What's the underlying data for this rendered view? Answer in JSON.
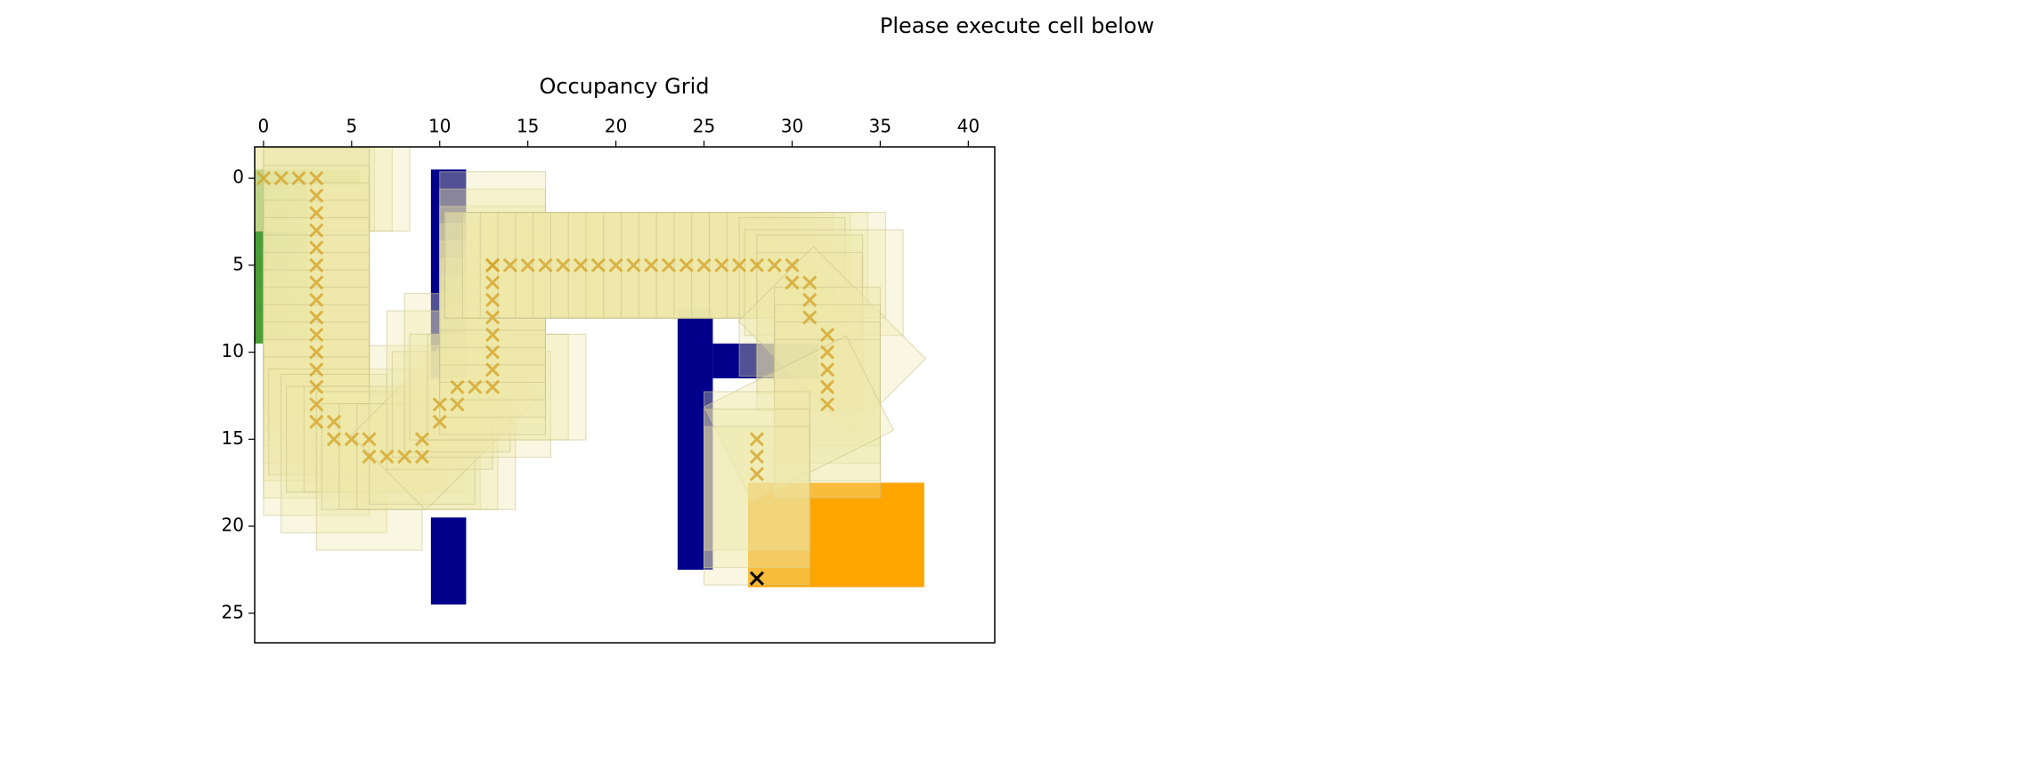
{
  "chart_data": {
    "type": "occupancy-grid",
    "title": "Please execute cell below",
    "subtitle": "Occupancy Grid",
    "xlim": [
      -0.5,
      41.5
    ],
    "ylim": [
      26.7,
      -1.8
    ],
    "xticks": [
      0,
      5,
      10,
      15,
      20,
      25,
      30,
      35,
      40
    ],
    "yticks": [
      0,
      5,
      10,
      15,
      20,
      25
    ],
    "start": [
      {
        "x": [
          -0.5,
          0.5
        ],
        "y": [
          -0.5,
          9.5
        ],
        "color": "#4a9e36"
      },
      {
        "x": [
          0.5,
          1.5
        ],
        "y": [
          -0.5,
          9.5
        ],
        "color": "#6cb050"
      },
      {
        "x": [
          1.5,
          2.5
        ],
        "y": [
          -0.5,
          9.5
        ],
        "color": "#8fc16c"
      },
      {
        "x": [
          2.5,
          5.5
        ],
        "y": [
          -0.5,
          0.5
        ],
        "color": "#b3d08c"
      }
    ],
    "obstacles": {
      "color": "#00008b",
      "rects": [
        {
          "x": [
            9.5,
            11.5
          ],
          "y": [
            -0.5,
            11.5
          ]
        },
        {
          "x": [
            9.5,
            11.5
          ],
          "y": [
            19.5,
            24.5
          ]
        },
        {
          "x": [
            23.5,
            25.5
          ],
          "y": [
            7.5,
            22.5
          ]
        },
        {
          "x": [
            25.5,
            31.5
          ],
          "y": [
            9.5,
            11.5
          ]
        }
      ]
    },
    "goal": {
      "color": "#ffa500",
      "x": [
        27.5,
        37.5
      ],
      "y": [
        17.5,
        23.5
      ]
    },
    "footprint_color": "#eee8aa",
    "path": {
      "color": "#d4a52a",
      "x": [
        0,
        1,
        2,
        3,
        3,
        3,
        3,
        3,
        3,
        3,
        3,
        3,
        3,
        3,
        3,
        3,
        3,
        3,
        4,
        4,
        5,
        6,
        6,
        7,
        8,
        9,
        9,
        10,
        10,
        11,
        11,
        12,
        13,
        13,
        13,
        13,
        13,
        13,
        13,
        13,
        13,
        14,
        15,
        16,
        17,
        18,
        19,
        20,
        21,
        22,
        23,
        24,
        25,
        26,
        27,
        28,
        29,
        30,
        30,
        31,
        31,
        31,
        32,
        32,
        32,
        32,
        32,
        28,
        28,
        28
      ],
      "y": [
        0,
        0,
        0,
        0,
        1,
        2,
        3,
        4,
        5,
        6,
        7,
        8,
        9,
        10,
        11,
        12,
        13,
        14,
        14,
        15,
        15,
        15,
        16,
        16,
        16,
        16,
        15,
        14,
        13,
        13,
        12,
        12,
        12,
        11,
        10,
        9,
        8,
        7,
        6,
        5,
        5,
        5,
        5,
        5,
        5,
        5,
        5,
        5,
        5,
        5,
        5,
        5,
        5,
        5,
        5,
        5,
        5,
        5,
        6,
        6,
        7,
        8,
        9,
        10,
        11,
        12,
        13,
        15,
        16,
        17
      ]
    },
    "end": {
      "color": "#000000",
      "x": 28,
      "y": 23
    }
  }
}
